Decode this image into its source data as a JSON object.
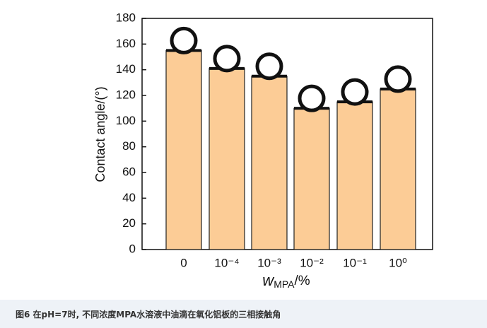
{
  "chart_data": {
    "type": "bar",
    "y_label": "Contact angle/(°)",
    "x_label": {
      "symbol": "w",
      "subscript": "MPA",
      "unit": "/%"
    },
    "categories": [
      "0",
      "10⁻⁴",
      "10⁻³",
      "10⁻²",
      "10⁻¹",
      "10⁰"
    ],
    "values": [
      155,
      141,
      135,
      110,
      115,
      125
    ],
    "color": "#fccc96",
    "ylim": [
      0,
      180
    ],
    "yticks": [
      0,
      20,
      40,
      60,
      80,
      100,
      120,
      140,
      160,
      180
    ]
  },
  "caption": "图6 在pH=7时, 不同浓度MPA水溶液中油滴在氧化铝板的三相接触角"
}
